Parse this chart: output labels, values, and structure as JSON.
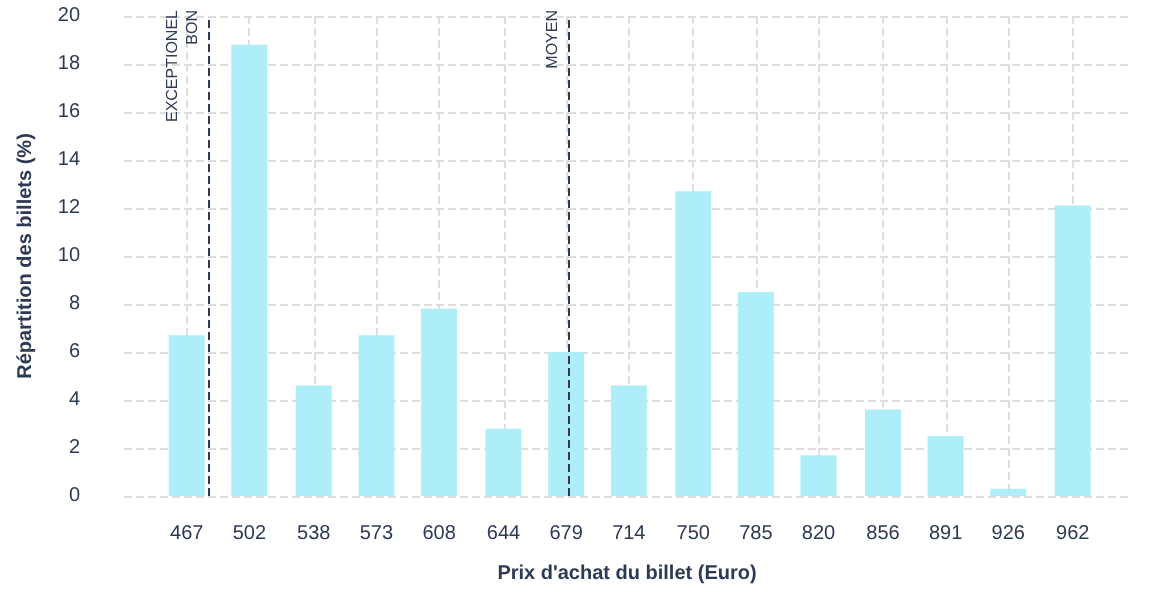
{
  "chart_data": {
    "type": "bar",
    "xlabel": "Prix d'achat du billet (Euro)",
    "ylabel": "Répartition des billets (%)",
    "x": [
      467,
      502,
      538,
      573,
      608,
      644,
      679,
      714,
      750,
      785,
      820,
      856,
      891,
      926,
      962
    ],
    "values": [
      6.7,
      18.8,
      4.6,
      6.7,
      7.8,
      2.8,
      6.0,
      4.6,
      12.7,
      8.5,
      1.7,
      3.6,
      2.5,
      0.3,
      12.1
    ],
    "color": "#aeeef8",
    "xlim": [
      432,
      994
    ],
    "xticks": [
      467,
      502,
      538,
      573,
      608,
      644,
      679,
      714,
      750,
      785,
      820,
      856,
      891,
      926,
      962
    ],
    "ylim": [
      0,
      20
    ],
    "yticks": [
      0,
      2,
      4,
      6,
      8,
      10,
      12,
      14,
      16,
      18,
      20
    ],
    "ref_lines": [
      {
        "axis": "x",
        "value": 479,
        "label": "EXCEPTIONEL\nBON",
        "color": "#2d3a55",
        "line_style": "dashed"
      },
      {
        "axis": "x",
        "value": 680,
        "label": "MOYEN",
        "color": "#2d3a55",
        "line_style": "dashed"
      }
    ],
    "grid": true
  }
}
